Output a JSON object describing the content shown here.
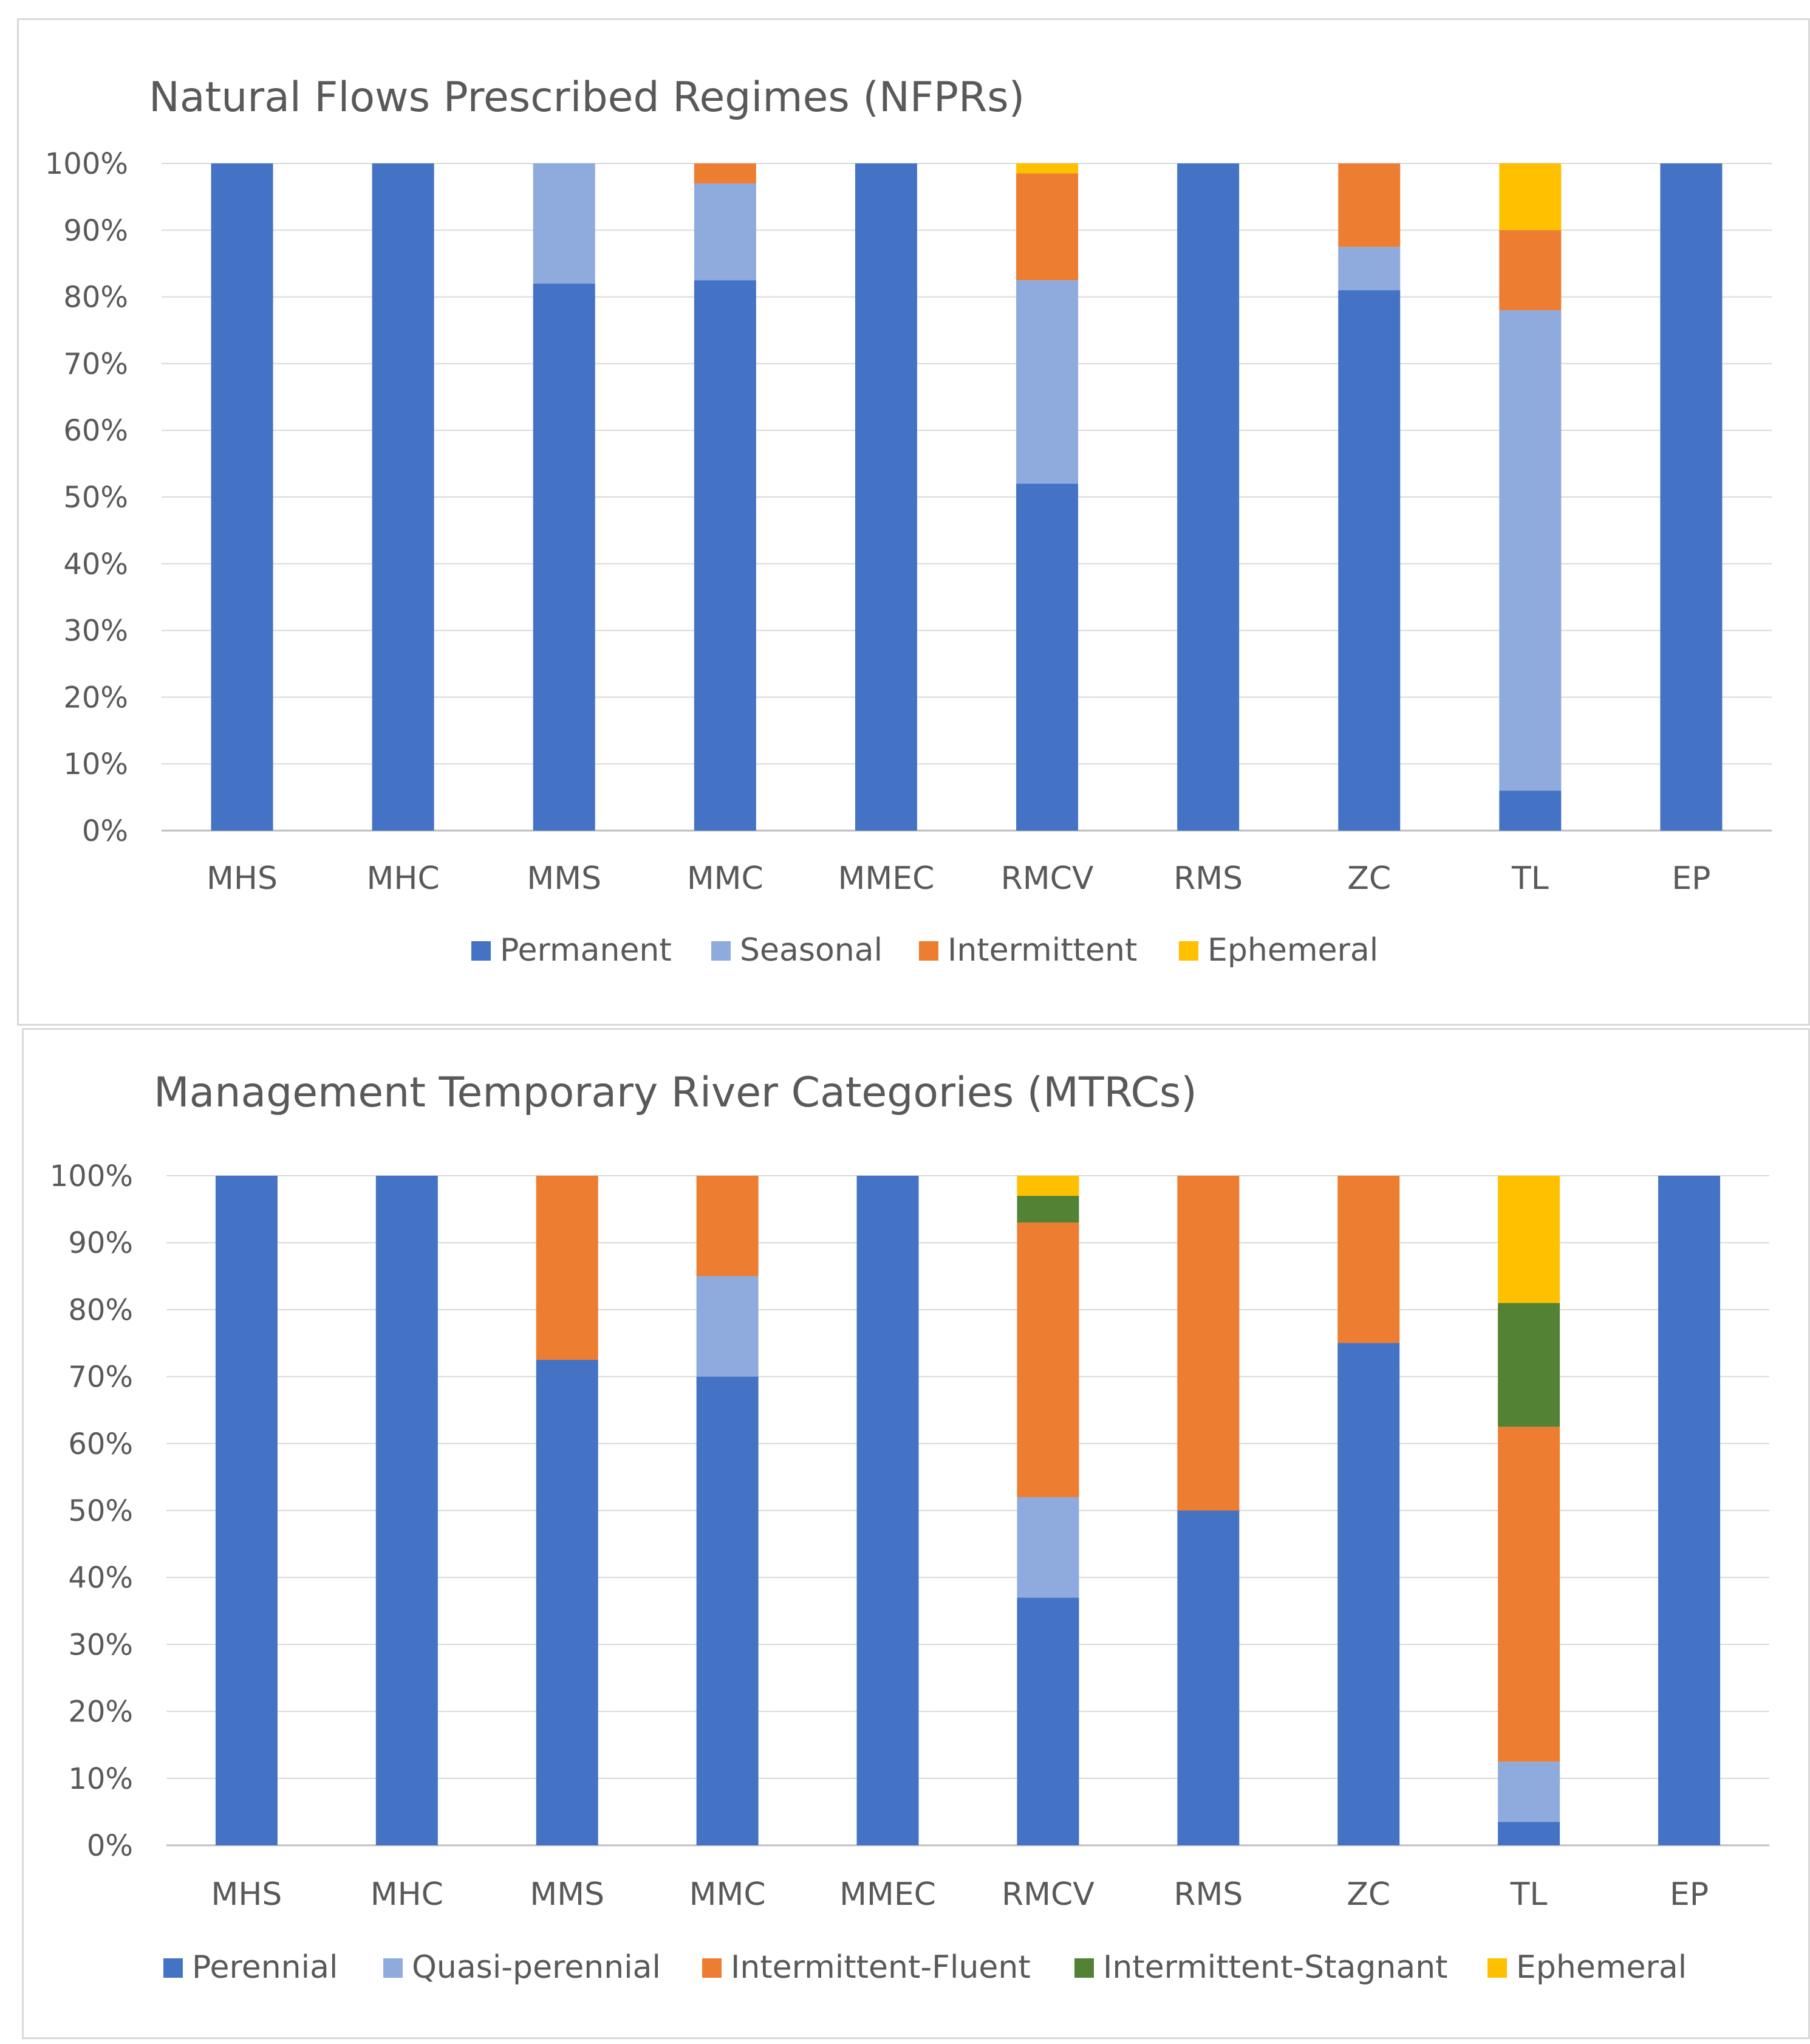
{
  "chart_data": [
    {
      "type": "bar",
      "stacked": true,
      "percent": true,
      "title": "Natural Flows Prescribed Regimes (NFPRs)",
      "categories": [
        "MHS",
        "MHC",
        "MMS",
        "MMC",
        "MMEC",
        "RMCV",
        "RMS",
        "ZC",
        "TL",
        "EP"
      ],
      "y_ticks": [
        "0%",
        "10%",
        "20%",
        "30%",
        "40%",
        "50%",
        "60%",
        "70%",
        "80%",
        "90%",
        "100%"
      ],
      "ylim": [
        0,
        100
      ],
      "grid": true,
      "legend_position": "bottom",
      "series": [
        {
          "name": "Permanent",
          "color": "#4472c4",
          "values": [
            100,
            100,
            82,
            82.5,
            100,
            52,
            100,
            81,
            6,
            100
          ]
        },
        {
          "name": "Seasonal",
          "color": "#8faadc",
          "values": [
            0,
            0,
            18,
            14.5,
            0,
            30.5,
            0,
            6.5,
            72,
            0
          ]
        },
        {
          "name": "Intermittent",
          "color": "#ed7d31",
          "values": [
            0,
            0,
            0,
            3,
            0,
            16,
            0,
            12.5,
            12,
            0
          ]
        },
        {
          "name": "Ephemeral",
          "color": "#ffc000",
          "values": [
            0,
            0,
            0,
            0,
            0,
            1.5,
            0,
            0,
            10,
            0
          ]
        }
      ]
    },
    {
      "type": "bar",
      "stacked": true,
      "percent": true,
      "title": "Management Temporary River Categories (MTRCs)",
      "categories": [
        "MHS",
        "MHC",
        "MMS",
        "MMC",
        "MMEC",
        "RMCV",
        "RMS",
        "ZC",
        "TL",
        "EP"
      ],
      "y_ticks": [
        "0%",
        "10%",
        "20%",
        "30%",
        "40%",
        "50%",
        "60%",
        "70%",
        "80%",
        "90%",
        "100%"
      ],
      "ylim": [
        0,
        100
      ],
      "grid": true,
      "legend_position": "bottom",
      "series": [
        {
          "name": "Perennial",
          "color": "#4472c4",
          "values": [
            100,
            100,
            72.5,
            70,
            100,
            37,
            50,
            75,
            3.5,
            100
          ]
        },
        {
          "name": "Quasi-perennial",
          "color": "#8faadc",
          "values": [
            0,
            0,
            0,
            15,
            0,
            15,
            0,
            0,
            9,
            0
          ]
        },
        {
          "name": "Intermittent-Fluent",
          "color": "#ed7d31",
          "values": [
            0,
            0,
            27.5,
            15,
            0,
            41,
            50,
            25,
            50,
            0
          ]
        },
        {
          "name": "Intermittent-Stagnant",
          "color": "#548235",
          "values": [
            0,
            0,
            0,
            0,
            0,
            4,
            0,
            0,
            18.5,
            0
          ]
        },
        {
          "name": "Ephemeral",
          "color": "#ffc000",
          "values": [
            0,
            0,
            0,
            0,
            0,
            3,
            0,
            0,
            19,
            0
          ]
        }
      ]
    }
  ]
}
